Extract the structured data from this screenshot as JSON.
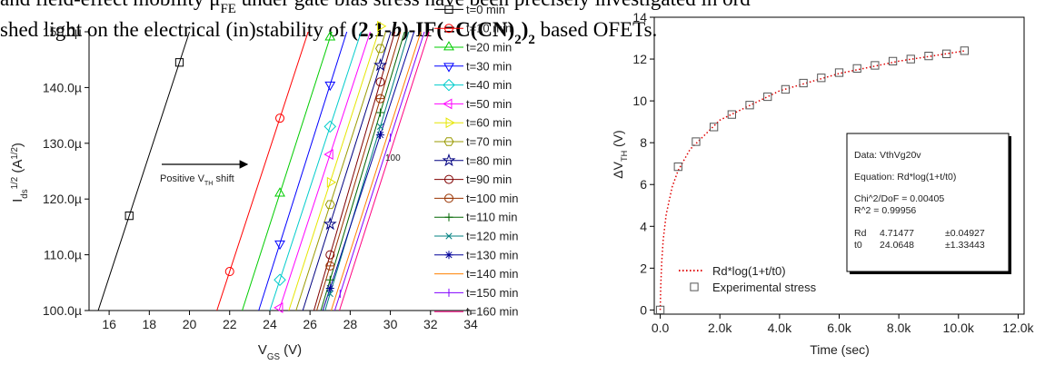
{
  "text": {
    "lines": [
      {
        "parts": [
          {
            "text": "and field-effect mobility μ"
          },
          {
            "text": "FE",
            "style": "sub"
          },
          {
            "text": " under gate bias stress have been precisely investigated in ord"
          }
        ]
      },
      {
        "parts": [
          {
            "text": "shed light on the electrical (in)stability of "
          },
          {
            "text": "(2,1-",
            "style": "bold"
          },
          {
            "text": "b",
            "style": "bold-italic"
          },
          {
            "text": ")-IF(=C(CN)",
            "style": "bold"
          },
          {
            "text": "2",
            "style": "bold-sub"
          },
          {
            "text": ")",
            "style": "bold"
          },
          {
            "text": "2",
            "style": "bold-sub"
          },
          {
            "text": " based OFETs."
          }
        ]
      }
    ]
  },
  "chart_data": [
    {
      "type": "line",
      "xlabel": [
        {
          "text": "V"
        },
        {
          "text": "GS",
          "pos": "sub"
        },
        {
          "text": " (V)"
        }
      ],
      "ylabel": [
        {
          "text": "I"
        },
        {
          "text": "ds",
          "pos": "sub"
        },
        {
          "text": "1/2",
          "pos": "sup"
        },
        {
          "text": " (A"
        },
        {
          "text": "1/2",
          "pos": "sup"
        },
        {
          "text": ")"
        }
      ],
      "annotation": [
        {
          "text": "Positive V"
        },
        {
          "text": "TH",
          "pos": "sub"
        },
        {
          "text": " shift"
        }
      ],
      "curve_label": {
        "text": "100",
        "color": "#ff00ff"
      },
      "xlim": [
        15,
        34
      ],
      "xticks": [
        16,
        18,
        20,
        22,
        24,
        26,
        28,
        30,
        32,
        34
      ],
      "ylim": [
        100,
        150
      ],
      "yticks": [
        {
          "value": 100,
          "label": "100.0µ"
        },
        {
          "value": 110,
          "label": "110.0µ"
        },
        {
          "value": 120,
          "label": "120.0µ"
        },
        {
          "value": 130,
          "label": "130.0µ"
        },
        {
          "value": 140,
          "label": "140.0µ"
        },
        {
          "value": 150,
          "label": "150.0µ"
        }
      ],
      "series": [
        {
          "name": "t=0 min",
          "color": "#000000",
          "marker": "square",
          "x": [
            17,
            19.5
          ],
          "values": [
            117,
            144.5
          ]
        },
        {
          "name": "t=10 min",
          "color": "#ff0000",
          "marker": "circle",
          "x": [
            22,
            24.5
          ],
          "values": [
            107,
            134.5
          ]
        },
        {
          "name": "t=20 min",
          "color": "#00cc00",
          "marker": "triangle-up",
          "x": [
            24.5,
            27
          ],
          "values": [
            121,
            149
          ]
        },
        {
          "name": "t=30 min",
          "color": "#0000ff",
          "marker": "triangle-down",
          "x": [
            24.5,
            27
          ],
          "values": [
            112,
            140.5
          ]
        },
        {
          "name": "t=40 min",
          "color": "#00cccc",
          "marker": "diamond",
          "x": [
            24.5,
            27
          ],
          "values": [
            105.5,
            133
          ]
        },
        {
          "name": "t=50 min",
          "color": "#ff00ff",
          "marker": "triangle-left",
          "x": [
            24.5,
            27
          ],
          "values": [
            100.5,
            128
          ]
        },
        {
          "name": "t=60 min",
          "color": "#e6e600",
          "marker": "triangle-right",
          "x": [
            27,
            29.5
          ],
          "values": [
            123,
            151
          ]
        },
        {
          "name": "t=70 min",
          "color": "#999900",
          "marker": "hexagon",
          "x": [
            27,
            29.5
          ],
          "values": [
            119,
            147
          ]
        },
        {
          "name": "t=80 min",
          "color": "#000080",
          "marker": "star",
          "x": [
            27,
            29.5
          ],
          "values": [
            115.5,
            144
          ]
        },
        {
          "name": "t=90 min",
          "color": "#800000",
          "marker": "circle",
          "x": [
            27,
            29.5
          ],
          "values": [
            110,
            141
          ]
        },
        {
          "name": "t=100 min",
          "color": "#993300",
          "marker": "circle-plus",
          "x": [
            27,
            29.5
          ],
          "values": [
            108,
            138
          ]
        },
        {
          "name": "t=110 min",
          "color": "#006600",
          "marker": "plus",
          "x": [
            27,
            29.5
          ],
          "values": [
            105.5,
            135.5
          ]
        },
        {
          "name": "t=120 min",
          "color": "#008080",
          "marker": "cross",
          "x": [
            27,
            29.5
          ],
          "values": [
            103,
            133
          ]
        },
        {
          "name": "t=130 min",
          "color": "#000099",
          "marker": "asterisk",
          "x": [
            27,
            29.5
          ],
          "values": [
            104,
            131.5
          ]
        },
        {
          "name": "t=140 min",
          "color": "#ff8000",
          "marker": "none",
          "x": [
            27.5,
            30
          ],
          "values": [
            105,
            133
          ]
        },
        {
          "name": "t=150 min",
          "color": "#8000ff",
          "marker": "vbar",
          "x": [
            27.5,
            30
          ],
          "values": [
            103,
            131
          ]
        },
        {
          "name": "t=160 min",
          "color": "#ff0080",
          "marker": "none",
          "x": [
            28,
            30.5
          ],
          "values": [
            106,
            134
          ]
        }
      ]
    },
    {
      "type": "scatter",
      "xlabel": [
        {
          "text": "Time (sec)"
        }
      ],
      "ylabel": [
        {
          "text": "ΔV"
        },
        {
          "text": "TH",
          "pos": "sub"
        },
        {
          "text": " (V)"
        }
      ],
      "xlim": [
        -200,
        12200
      ],
      "xticks": [
        {
          "value": 0,
          "label": "0.0"
        },
        {
          "value": 2000,
          "label": "2.0k"
        },
        {
          "value": 4000,
          "label": "4.0k"
        },
        {
          "value": 6000,
          "label": "6.0k"
        },
        {
          "value": 8000,
          "label": "8.0k"
        },
        {
          "value": 10000,
          "label": "10.0k"
        },
        {
          "value": 12000,
          "label": "12.0k"
        }
      ],
      "ylim": [
        -0.2,
        14
      ],
      "yticks": [
        0,
        2,
        4,
        6,
        8,
        10,
        12,
        14
      ],
      "series": [
        {
          "name": "Rd*log(1+t/t0)",
          "color": "#e00000",
          "line_style": "dotted",
          "x": [
            0,
            10,
            20,
            50,
            100,
            200,
            400,
            600,
            1000,
            2000,
            4000,
            6000,
            8000,
            10200
          ],
          "values": [
            0,
            0.71,
            1.24,
            2.3,
            3.36,
            4.57,
            5.88,
            6.67,
            7.68,
            9.08,
            10.48,
            11.31,
            11.9,
            12.39
          ]
        },
        {
          "name": "Experimental stress",
          "color": "#555555",
          "marker": "square",
          "x": [
            0,
            600,
            1200,
            1800,
            2400,
            3000,
            3600,
            4200,
            4800,
            5400,
            6000,
            6600,
            7200,
            7800,
            8400,
            9000,
            9600,
            10200
          ],
          "values": [
            0,
            6.85,
            8.05,
            8.75,
            9.35,
            9.8,
            10.2,
            10.55,
            10.85,
            11.1,
            11.35,
            11.55,
            11.7,
            11.9,
            12.0,
            12.15,
            12.25,
            12.4
          ]
        }
      ],
      "info_box": [
        [
          "Data: VthVg20v"
        ],
        [
          "Equation: Rd*log(1+t/t0)"
        ],
        [
          "Chi^2/DoF  = 0.00405"
        ],
        [
          "R^2  =  0.99956"
        ],
        [
          "Rd",
          "4.71477",
          "±0.04927"
        ],
        [
          "t0",
          "24.0648",
          "±1.33443"
        ]
      ]
    }
  ]
}
